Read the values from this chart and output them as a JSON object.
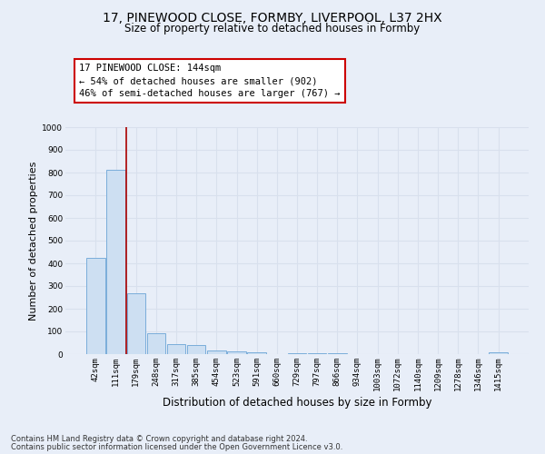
{
  "title1": "17, PINEWOOD CLOSE, FORMBY, LIVERPOOL, L37 2HX",
  "title2": "Size of property relative to detached houses in Formby",
  "xlabel": "Distribution of detached houses by size in Formby",
  "ylabel": "Number of detached properties",
  "categories": [
    "42sqm",
    "111sqm",
    "179sqm",
    "248sqm",
    "317sqm",
    "385sqm",
    "454sqm",
    "523sqm",
    "591sqm",
    "660sqm",
    "729sqm",
    "797sqm",
    "866sqm",
    "934sqm",
    "1003sqm",
    "1072sqm",
    "1140sqm",
    "1209sqm",
    "1278sqm",
    "1346sqm",
    "1415sqm"
  ],
  "values": [
    425,
    812,
    270,
    92,
    45,
    40,
    18,
    13,
    8,
    0,
    5,
    3,
    3,
    0,
    0,
    0,
    0,
    0,
    0,
    0,
    7
  ],
  "bar_color": "#cddff2",
  "bar_edge_color": "#7aadda",
  "vline_color": "#aa0000",
  "vline_x": 1.5,
  "annotation_line1": "17 PINEWOOD CLOSE: 144sqm",
  "annotation_line2": "← 54% of detached houses are smaller (902)",
  "annotation_line3": "46% of semi-detached houses are larger (767) →",
  "annotation_box_facecolor": "#ffffff",
  "annotation_box_edgecolor": "#cc0000",
  "ylim_max": 1000,
  "yticks": [
    0,
    100,
    200,
    300,
    400,
    500,
    600,
    700,
    800,
    900,
    1000
  ],
  "footer1": "Contains HM Land Registry data © Crown copyright and database right 2024.",
  "footer2": "Contains public sector information licensed under the Open Government Licence v3.0.",
  "bg_color": "#e8eef8",
  "grid_color": "#d8e0ed",
  "title1_fontsize": 10,
  "title2_fontsize": 8.5,
  "tick_fontsize": 6.5,
  "ylabel_fontsize": 8,
  "xlabel_fontsize": 8.5,
  "ann_fontsize": 7.5,
  "footer_fontsize": 6
}
